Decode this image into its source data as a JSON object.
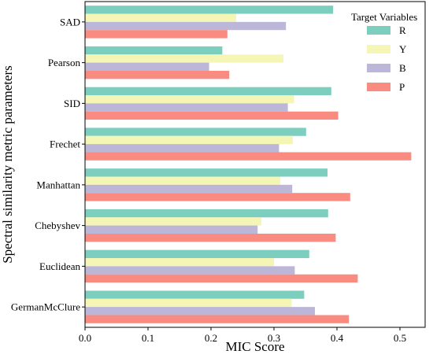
{
  "chart_data": {
    "type": "bar",
    "orientation": "horizontal",
    "xlabel": "MIC Score",
    "ylabel": "Spectral similarity metric parameters",
    "xlim": [
      0,
      0.54
    ],
    "xticks": [
      "0.0",
      "0.1",
      "0.2",
      "0.3",
      "0.4",
      "0.5"
    ],
    "grid": false,
    "categories": [
      "SAD",
      "Pearson",
      "SID",
      "Frechet",
      "Manhattan",
      "Chebyshev",
      "Euclidean",
      "GermanMcClure"
    ],
    "legend": {
      "title": "Target Variables",
      "placement": "top-right"
    },
    "series": [
      {
        "name": "R",
        "color": "#7ccfbe",
        "values": [
          0.394,
          0.218,
          0.391,
          0.351,
          0.385,
          0.386,
          0.356,
          0.348
        ]
      },
      {
        "name": "Y",
        "color": "#f5f5b6",
        "values": [
          0.24,
          0.315,
          0.332,
          0.33,
          0.31,
          0.28,
          0.3,
          0.328
        ]
      },
      {
        "name": "B",
        "color": "#bcb6d8",
        "values": [
          0.319,
          0.197,
          0.322,
          0.308,
          0.329,
          0.274,
          0.333,
          0.365
        ]
      },
      {
        "name": "P",
        "color": "#f98b80",
        "values": [
          0.226,
          0.229,
          0.402,
          0.518,
          0.421,
          0.398,
          0.433,
          0.419
        ]
      }
    ]
  }
}
